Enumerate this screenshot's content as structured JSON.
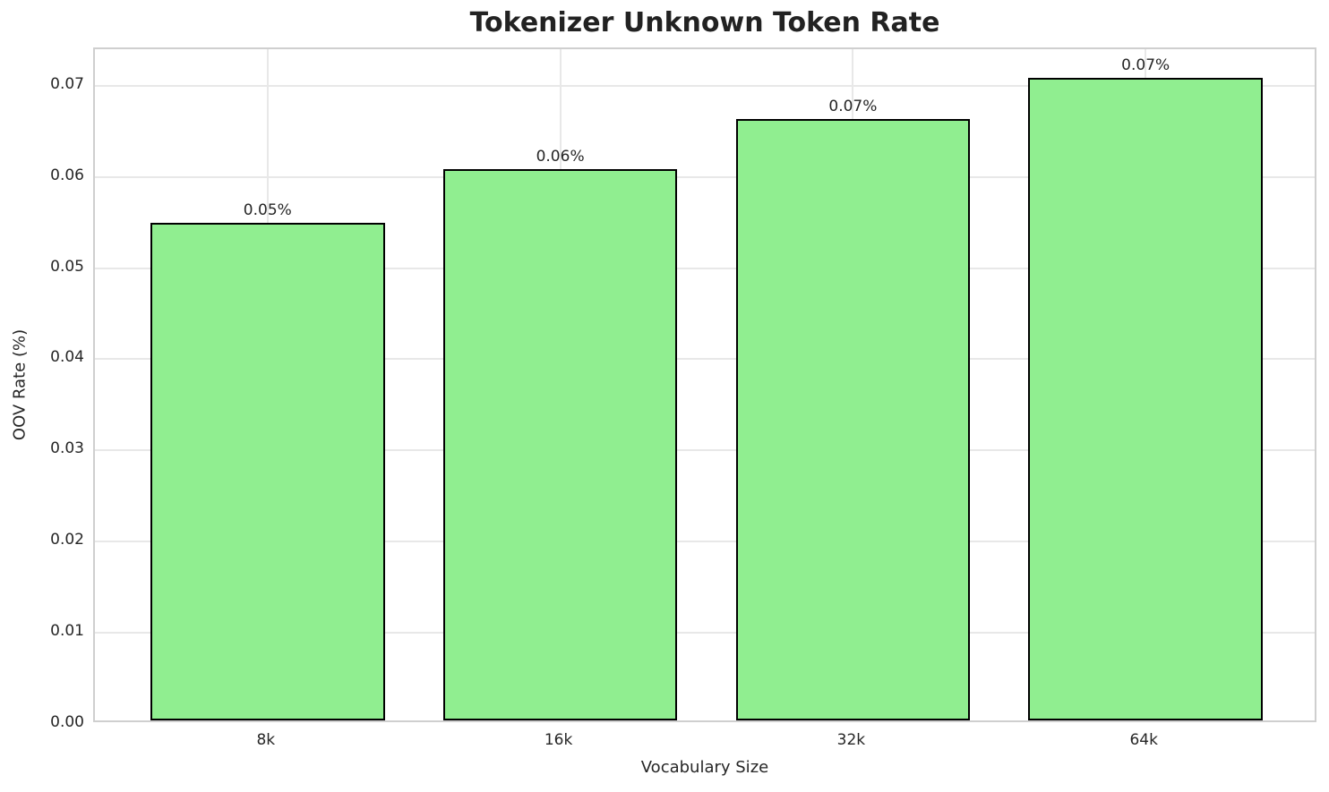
{
  "chart_data": {
    "type": "bar",
    "title": "Tokenizer Unknown Token Rate",
    "xlabel": "Vocabulary Size",
    "ylabel": "OOV Rate (%)",
    "categories": [
      "8k",
      "16k",
      "32k",
      "64k"
    ],
    "values": [
      0.0546,
      0.0605,
      0.066,
      0.0705
    ],
    "bar_labels": [
      "0.05%",
      "0.06%",
      "0.07%",
      "0.07%"
    ],
    "yticks": [
      0.0,
      0.01,
      0.02,
      0.03,
      0.04,
      0.05,
      0.06,
      0.07
    ],
    "ytick_labels": [
      "0.00",
      "0.01",
      "0.02",
      "0.03",
      "0.04",
      "0.05",
      "0.06",
      "0.07"
    ],
    "ylim": [
      0,
      0.074
    ],
    "grid": true,
    "legend_position": "none",
    "bar_width_fraction": 0.8,
    "colors": {
      "bar_fill": "#90EE90",
      "bar_edge": "#000000",
      "grid": "#e8e8e8",
      "spine": "#cfcfcf",
      "text": "#262626",
      "background": "#ffffff"
    }
  }
}
